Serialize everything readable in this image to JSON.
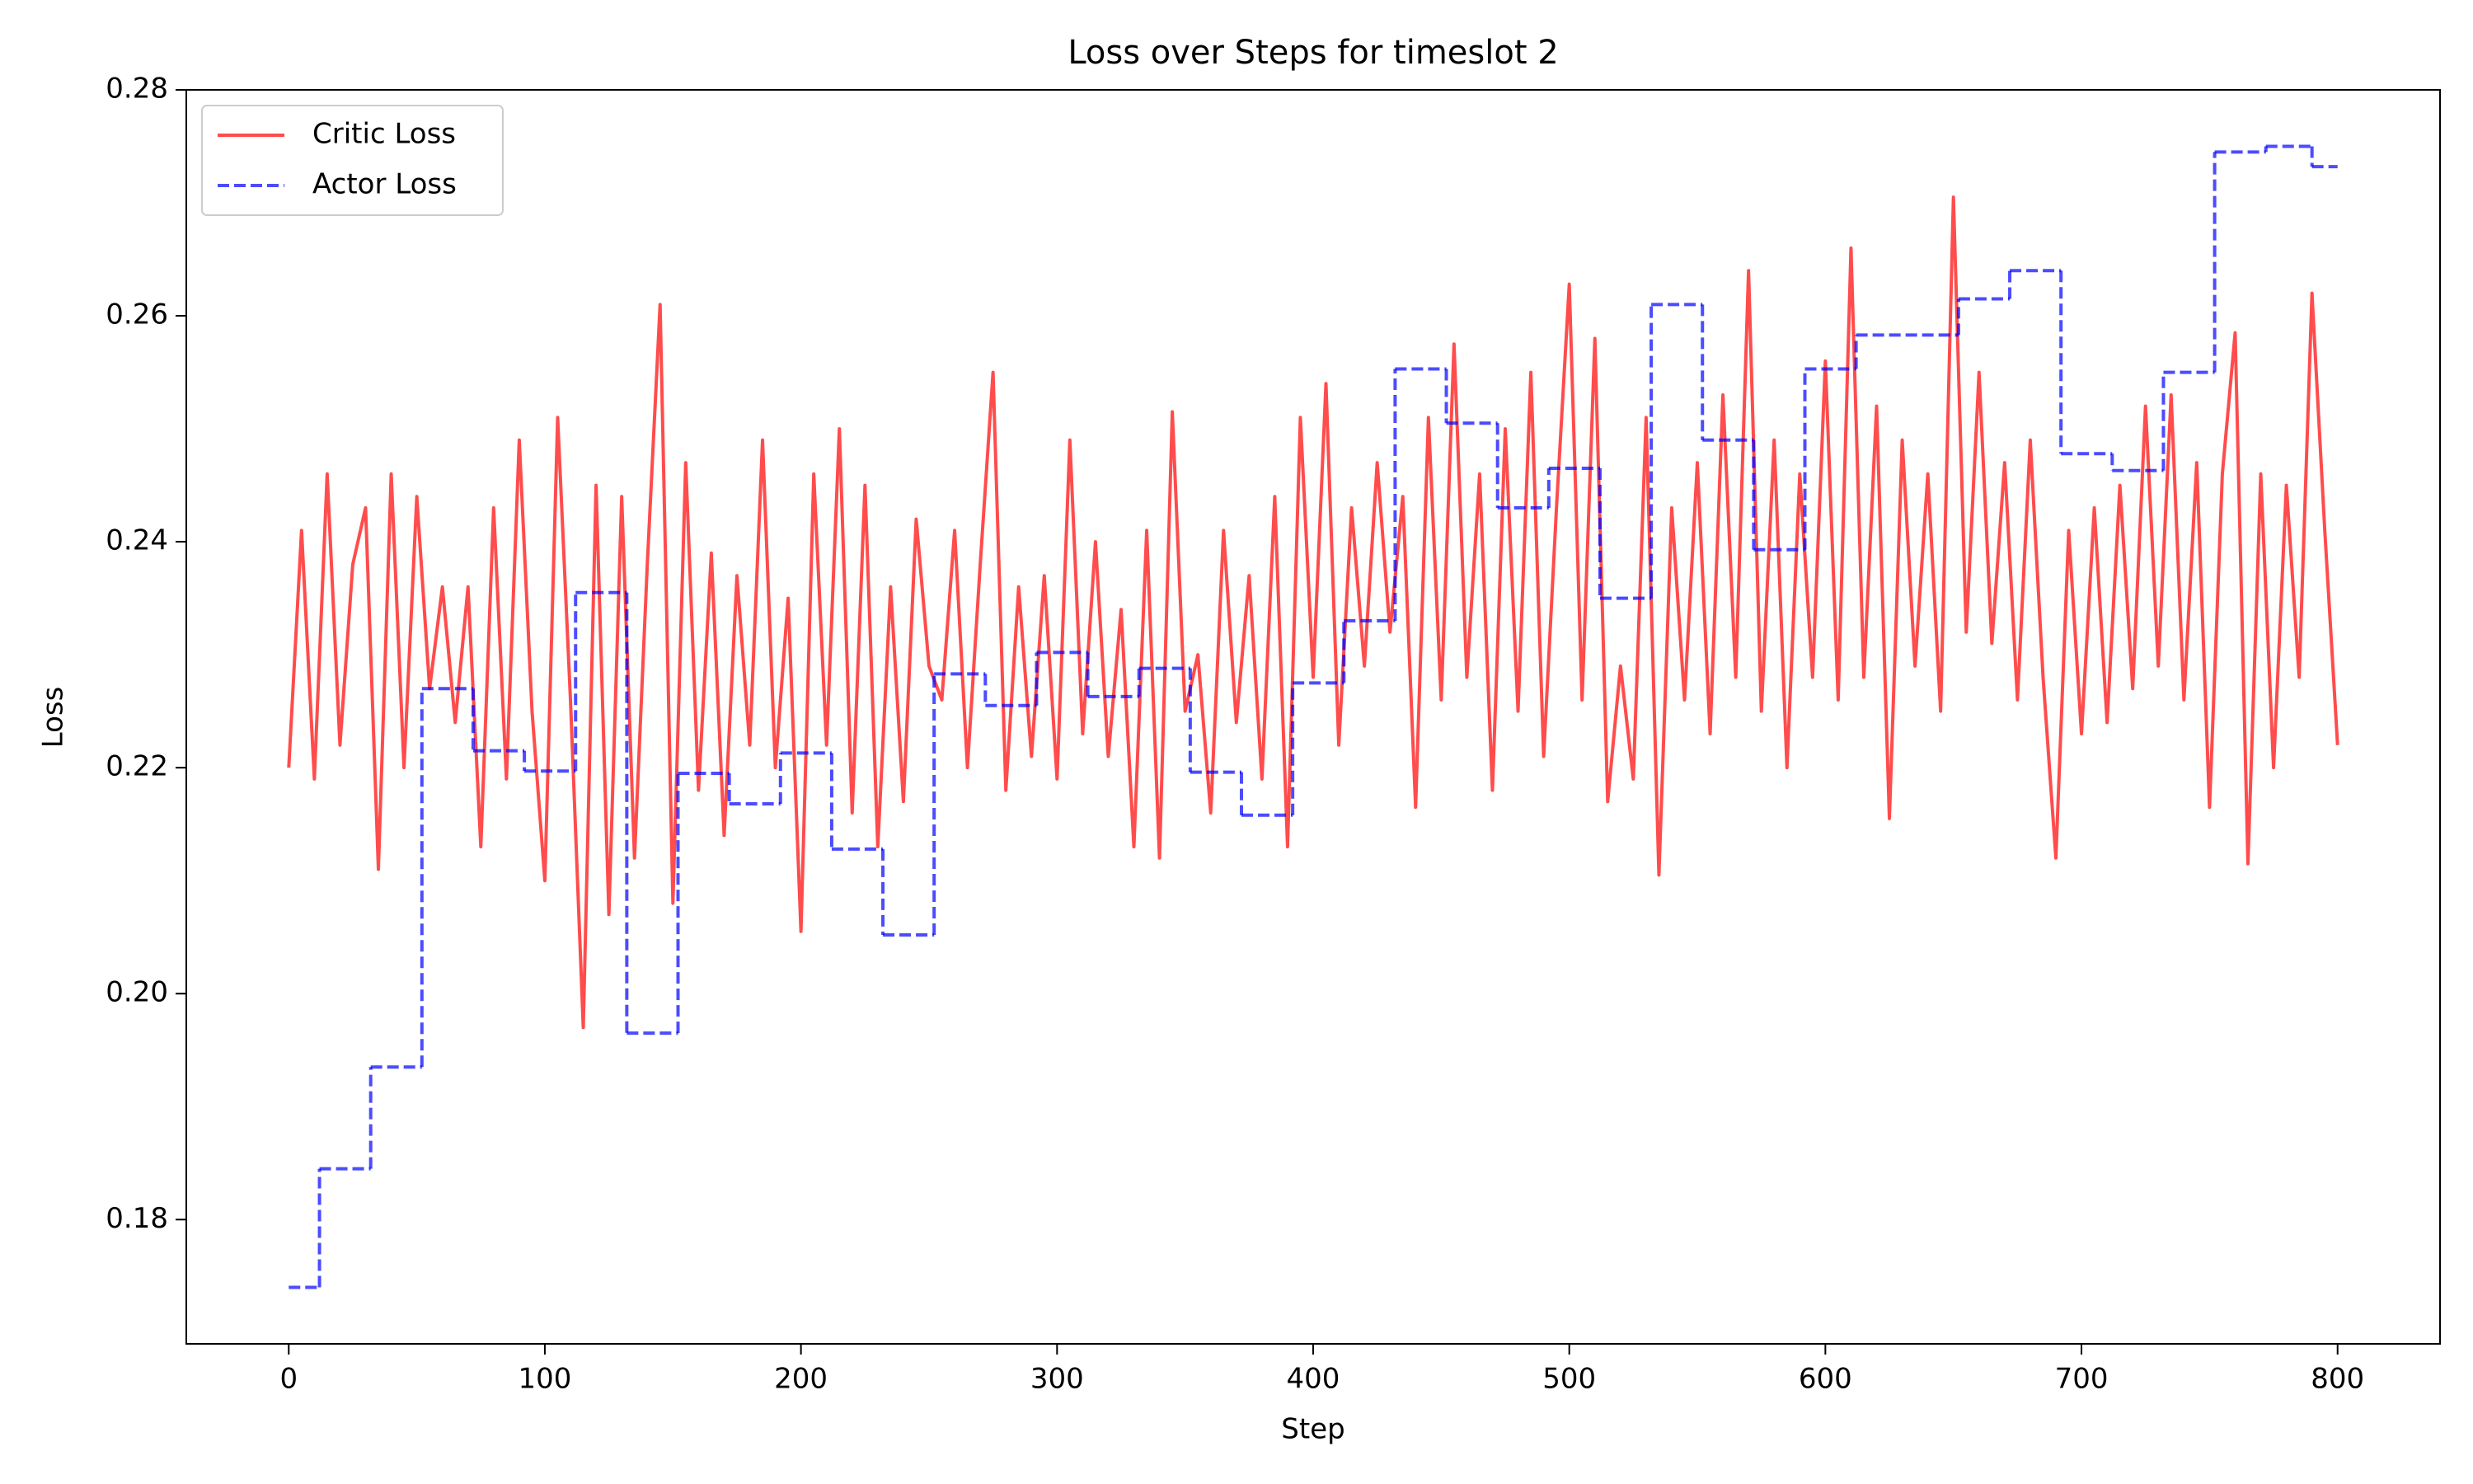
{
  "chart_data": {
    "type": "line",
    "title": "Loss over Steps for timeslot 2",
    "x_label": "Step",
    "y_label": "Loss",
    "xlim": [
      -40,
      840
    ],
    "ylim": [
      0.169,
      0.28
    ],
    "xticks": [
      0,
      100,
      200,
      300,
      400,
      500,
      600,
      700,
      800
    ],
    "yticks": [
      0.18,
      {
        "value": 0.2,
        "label": "0.20"
      },
      0.22,
      0.24,
      0.26,
      0.28
    ],
    "legend": "upper left",
    "series": [
      {
        "name": "Critic Loss",
        "color": "red",
        "alpha": 0.7,
        "linestyle": "solid",
        "drawstyle": "default",
        "x": [
          0,
          5,
          10,
          15,
          20,
          25,
          30,
          35,
          40,
          45,
          50,
          55,
          60,
          65,
          70,
          75,
          80,
          85,
          90,
          95,
          100,
          105,
          110,
          115,
          120,
          125,
          130,
          135,
          140,
          145,
          150,
          155,
          160,
          165,
          170,
          175,
          180,
          185,
          190,
          195,
          200,
          205,
          210,
          215,
          220,
          225,
          230,
          235,
          240,
          245,
          250,
          255,
          260,
          265,
          270,
          275,
          280,
          285,
          290,
          295,
          300,
          305,
          310,
          315,
          320,
          325,
          330,
          335,
          340,
          345,
          350,
          355,
          360,
          365,
          370,
          375,
          380,
          385,
          390,
          395,
          400,
          405,
          410,
          415,
          420,
          425,
          430,
          435,
          440,
          445,
          450,
          455,
          460,
          465,
          470,
          475,
          480,
          485,
          490,
          495,
          500,
          505,
          510,
          515,
          520,
          525,
          530,
          535,
          540,
          545,
          550,
          555,
          560,
          565,
          570,
          575,
          580,
          585,
          590,
          595,
          600,
          605,
          610,
          615,
          620,
          625,
          630,
          635,
          640,
          645,
          650,
          655,
          660,
          665,
          670,
          675,
          680,
          685,
          690,
          695,
          700,
          705,
          710,
          715,
          720,
          725,
          730,
          735,
          740,
          745,
          750,
          755,
          760,
          765,
          770,
          775,
          780,
          785,
          790,
          795,
          800
        ],
        "values": [
          0.22,
          0.241,
          0.219,
          0.246,
          0.222,
          0.238,
          0.243,
          0.211,
          0.246,
          0.22,
          0.244,
          0.227,
          0.236,
          0.224,
          0.236,
          0.213,
          0.243,
          0.219,
          0.249,
          0.225,
          0.21,
          0.251,
          0.226,
          0.197,
          0.245,
          0.207,
          0.244,
          0.212,
          0.238,
          0.261,
          0.208,
          0.247,
          0.218,
          0.239,
          0.214,
          0.237,
          0.222,
          0.249,
          0.22,
          0.235,
          0.2055,
          0.246,
          0.222,
          0.25,
          0.216,
          0.245,
          0.213,
          0.236,
          0.217,
          0.242,
          0.229,
          0.226,
          0.241,
          0.22,
          0.238,
          0.255,
          0.218,
          0.236,
          0.221,
          0.237,
          0.219,
          0.249,
          0.223,
          0.24,
          0.221,
          0.234,
          0.213,
          0.241,
          0.212,
          0.2515,
          0.225,
          0.23,
          0.216,
          0.241,
          0.224,
          0.237,
          0.219,
          0.244,
          0.213,
          0.251,
          0.228,
          0.254,
          0.222,
          0.243,
          0.229,
          0.247,
          0.232,
          0.244,
          0.2165,
          0.251,
          0.226,
          0.2575,
          0.228,
          0.246,
          0.218,
          0.25,
          0.225,
          0.255,
          0.221,
          0.243,
          0.2628,
          0.226,
          0.258,
          0.217,
          0.229,
          0.219,
          0.251,
          0.2105,
          0.243,
          0.226,
          0.247,
          0.223,
          0.253,
          0.228,
          0.264,
          0.225,
          0.249,
          0.22,
          0.246,
          0.228,
          0.256,
          0.226,
          0.266,
          0.228,
          0.252,
          0.2155,
          0.249,
          0.229,
          0.246,
          0.225,
          0.2705,
          0.232,
          0.255,
          0.231,
          0.247,
          0.226,
          0.249,
          0.228,
          0.212,
          0.241,
          0.223,
          0.243,
          0.224,
          0.245,
          0.227,
          0.252,
          0.229,
          0.253,
          0.226,
          0.247,
          0.2165,
          0.246,
          0.2585,
          0.2115,
          0.246,
          0.22,
          0.245,
          0.228,
          0.262,
          0.241,
          0.222
        ]
      },
      {
        "name": "Actor Loss",
        "color": "blue",
        "alpha": 0.7,
        "linestyle": "dashed",
        "drawstyle": "steps-post",
        "x": [
          0,
          12,
          32,
          52,
          72,
          92,
          112,
          132,
          152,
          172,
          192,
          212,
          232,
          252,
          272,
          292,
          312,
          332,
          352,
          372,
          392,
          412,
          432,
          452,
          472,
          492,
          512,
          532,
          552,
          572,
          592,
          612,
          652,
          672,
          692,
          712,
          732,
          752,
          772,
          790,
          800
        ],
        "values": [
          0.174,
          0.1845,
          0.1935,
          0.227,
          0.2215,
          0.2197,
          0.2355,
          0.1965,
          0.2195,
          0.2168,
          0.2213,
          0.2128,
          0.2052,
          0.2283,
          0.2255,
          0.2302,
          0.2263,
          0.2288,
          0.2196,
          0.2158,
          0.2275,
          0.233,
          0.2553,
          0.2505,
          0.243,
          0.2465,
          0.235,
          0.261,
          0.249,
          0.2393,
          0.2553,
          0.2583,
          0.2615,
          0.264,
          0.2478,
          0.2463,
          0.255,
          0.2745,
          0.275,
          0.2732,
          0.2732
        ]
      }
    ]
  }
}
